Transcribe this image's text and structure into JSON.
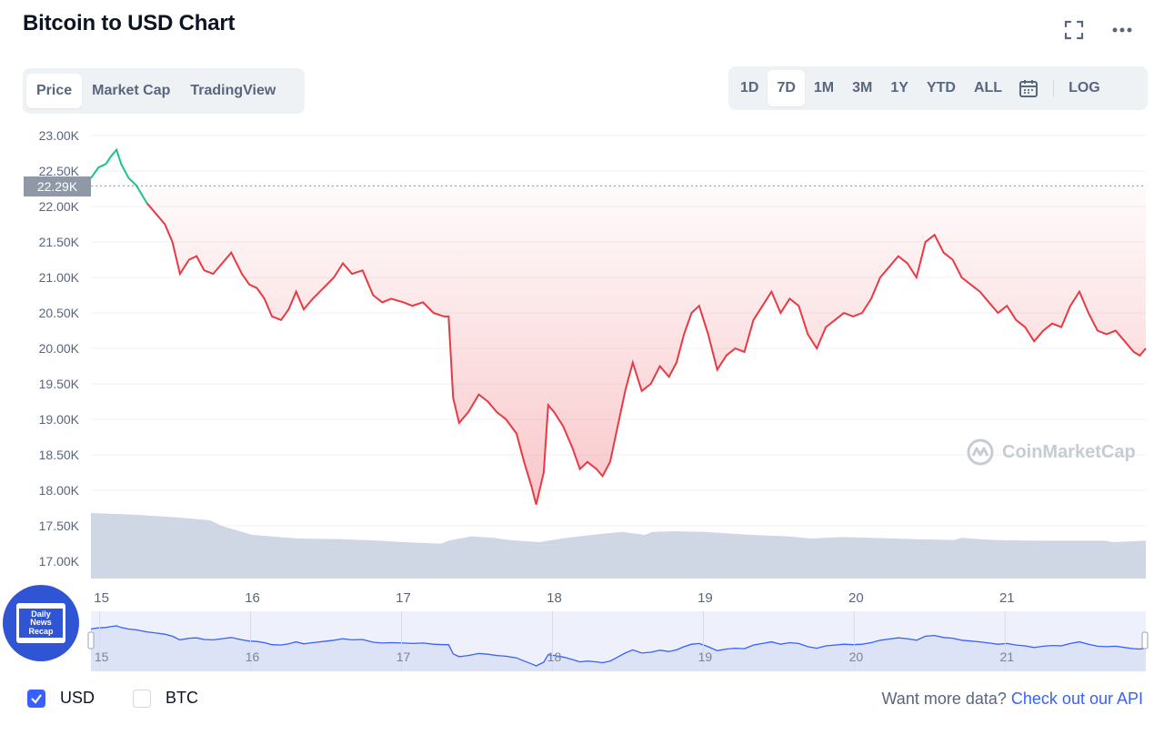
{
  "title": "Bitcoin to USD Chart",
  "toolbar": {
    "fullscreen_icon": "expand-icon",
    "more_icon": "more-horizontal-icon"
  },
  "view_tabs": [
    {
      "label": "Price",
      "active": true
    },
    {
      "label": "Market Cap",
      "active": false
    },
    {
      "label": "TradingView",
      "active": false
    }
  ],
  "range_tabs": [
    {
      "label": "1D",
      "active": false
    },
    {
      "label": "7D",
      "active": true
    },
    {
      "label": "1M",
      "active": false
    },
    {
      "label": "3M",
      "active": false
    },
    {
      "label": "1Y",
      "active": false
    },
    {
      "label": "YTD",
      "active": false
    },
    {
      "label": "ALL",
      "active": false
    }
  ],
  "calendar_icon": "calendar-icon",
  "log_label": "LOG",
  "watermark": "CoinMarketCap",
  "badge": {
    "line1": "Daily",
    "line2": "News",
    "line3": "Recap"
  },
  "currency": [
    {
      "label": "USD",
      "checked": true
    },
    {
      "label": "BTC",
      "checked": false
    }
  ],
  "api": {
    "prefix": "Want more data?",
    "link": "Check out our API"
  },
  "colors": {
    "up": "#16c784",
    "down": "#ea3943",
    "down_fill": "#f8cfd1",
    "volume": "#cfd6e4",
    "accent": "#3861fb",
    "navigator_fill": "#dde3f7"
  },
  "chart_data": {
    "type": "line",
    "title": "Bitcoin to USD Chart",
    "xlabel": "",
    "ylabel": "",
    "ylim": [
      16800,
      23100
    ],
    "y_ticks": [
      "23.00K",
      "22.50K",
      "22.00K",
      "21.50K",
      "21.00K",
      "20.50K",
      "20.00K",
      "19.50K",
      "19.00K",
      "18.50K",
      "18.00K",
      "17.50K",
      "17.00K"
    ],
    "y_tick_values": [
      23000,
      22500,
      22000,
      21500,
      21000,
      20500,
      20000,
      19500,
      19000,
      18500,
      18000,
      17500,
      17000
    ],
    "x_ticks": [
      "15",
      "16",
      "17",
      "18",
      "19",
      "20",
      "21"
    ],
    "x_tick_values": [
      15,
      16,
      17,
      18,
      19,
      20,
      21
    ],
    "xlim": [
      14.93,
      21.92
    ],
    "baseline_price": 22290,
    "baseline_label": "22.29K",
    "grid": true,
    "series": [
      {
        "name": "Price",
        "x": [
          14.93,
          14.98,
          15.03,
          15.06,
          15.1,
          15.13,
          15.18,
          15.23,
          15.3,
          15.36,
          15.42,
          15.47,
          15.52,
          15.58,
          15.63,
          15.68,
          15.74,
          15.8,
          15.86,
          15.93,
          15.98,
          16.03,
          16.08,
          16.13,
          16.19,
          16.24,
          16.29,
          16.34,
          16.4,
          16.47,
          16.54,
          16.6,
          16.66,
          16.73,
          16.8,
          16.86,
          16.92,
          17.0,
          17.06,
          17.13,
          17.2,
          17.27,
          17.3,
          17.33,
          17.37,
          17.43,
          17.5,
          17.56,
          17.62,
          17.68,
          17.75,
          17.8,
          17.85,
          17.88,
          17.93,
          17.96,
          18.0,
          18.06,
          18.12,
          18.17,
          18.22,
          18.28,
          18.32,
          18.37,
          18.42,
          18.47,
          18.52,
          18.58,
          18.64,
          18.7,
          18.76,
          18.81,
          18.86,
          18.91,
          18.96,
          19.02,
          19.08,
          19.14,
          19.2,
          19.26,
          19.32,
          19.38,
          19.44,
          19.5,
          19.56,
          19.62,
          19.68,
          19.74,
          19.8,
          19.86,
          19.92,
          19.98,
          20.04,
          20.1,
          20.16,
          20.22,
          20.28,
          20.34,
          20.4,
          20.46,
          20.52,
          20.58,
          20.64,
          20.7,
          20.76,
          20.82,
          20.88,
          20.94,
          21.0,
          21.06,
          21.12,
          21.18,
          21.24,
          21.3,
          21.36,
          21.42,
          21.48,
          21.54,
          21.6,
          21.66,
          21.72,
          21.78,
          21.84,
          21.88,
          21.92
        ],
        "y": [
          22400,
          22550,
          22600,
          22700,
          22800,
          22600,
          22400,
          22300,
          22050,
          21900,
          21750,
          21500,
          21050,
          21250,
          21300,
          21100,
          21050,
          21200,
          21350,
          21050,
          20900,
          20850,
          20700,
          20450,
          20400,
          20550,
          20800,
          20550,
          20700,
          20850,
          21000,
          21200,
          21050,
          21100,
          20750,
          20650,
          20700,
          20650,
          20600,
          20650,
          20500,
          20450,
          20450,
          19300,
          18950,
          19100,
          19350,
          19250,
          19100,
          19000,
          18800,
          18400,
          18050,
          17800,
          18250,
          19200,
          19100,
          18900,
          18600,
          18300,
          18400,
          18300,
          18200,
          18400,
          18900,
          19400,
          19800,
          19400,
          19500,
          19750,
          19600,
          19800,
          20200,
          20500,
          20600,
          20200,
          19700,
          19900,
          20000,
          19950,
          20400,
          20600,
          20800,
          20500,
          20700,
          20600,
          20200,
          20000,
          20300,
          20400,
          20500,
          20450,
          20500,
          20700,
          21000,
          21150,
          21300,
          21200,
          21000,
          21500,
          21600,
          21350,
          21250,
          21000,
          20900,
          20800,
          20650,
          20500,
          20600,
          20400,
          20300,
          20100,
          20250,
          20350,
          20300,
          20600,
          20800,
          20500,
          20250,
          20200,
          20250,
          20100,
          19950,
          19900,
          20000
        ]
      },
      {
        "name": "Volume",
        "x": [
          14.93,
          15.2,
          15.5,
          15.72,
          15.8,
          16.0,
          16.3,
          16.6,
          16.85,
          17.0,
          17.25,
          17.3,
          17.45,
          17.6,
          17.7,
          17.9,
          18.05,
          18.25,
          18.35,
          18.45,
          18.6,
          18.65,
          18.8,
          19.0,
          19.3,
          19.55,
          19.7,
          19.9,
          20.1,
          20.4,
          20.65,
          20.7,
          20.9,
          21.2,
          21.5,
          21.65,
          21.7,
          21.92
        ],
        "y": [
          90,
          88,
          84,
          80,
          72,
          60,
          55,
          54,
          52,
          50,
          48,
          52,
          58,
          56,
          53,
          50,
          55,
          60,
          62,
          64,
          60,
          64,
          65,
          64,
          60,
          58,
          55,
          57,
          56,
          54,
          53,
          56,
          53,
          52,
          52,
          52,
          50,
          52
        ]
      }
    ]
  }
}
